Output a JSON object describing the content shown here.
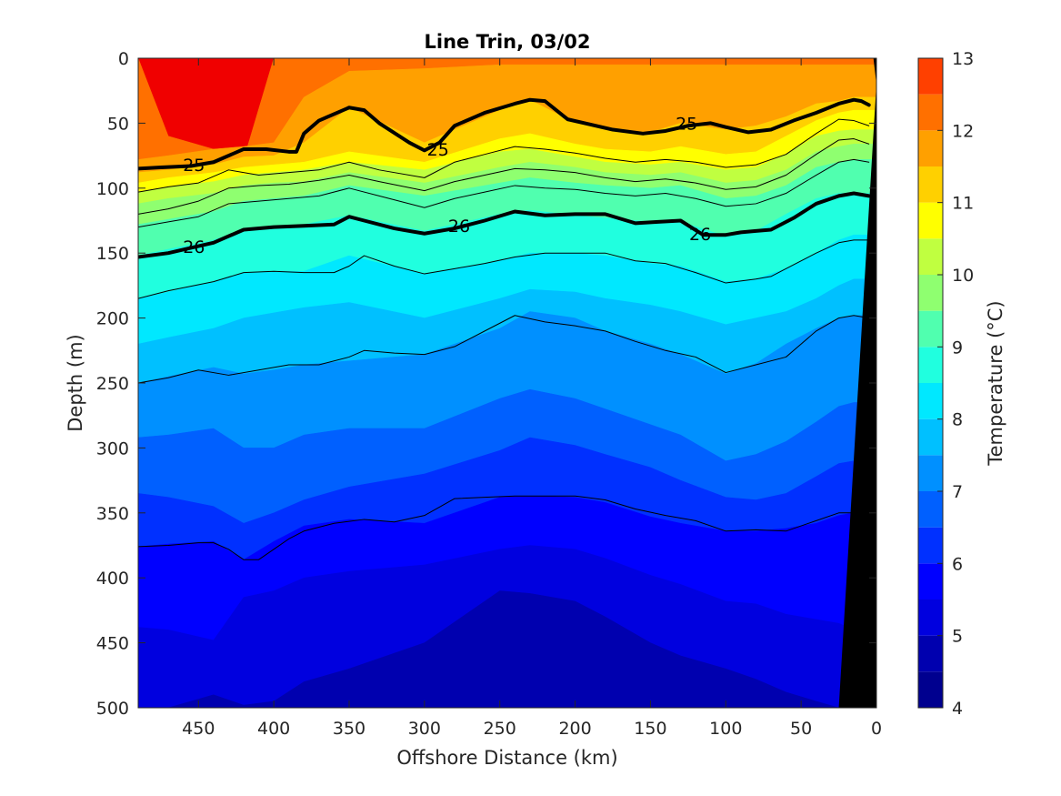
{
  "chart_data": {
    "type": "contour",
    "title": "Line Trin, 03/02",
    "xlabel": "Offshore Distance (km)",
    "ylabel": "Depth (m)",
    "colorbar_label": "Temperature (°C)",
    "xlim": [
      490,
      0
    ],
    "ylim": [
      0,
      500
    ],
    "x_reversed": true,
    "y_reversed": true,
    "x_ticks": [
      "450",
      "400",
      "350",
      "300",
      "250",
      "200",
      "150",
      "100",
      "50",
      "0"
    ],
    "y_ticks": [
      "0",
      "50",
      "100",
      "150",
      "200",
      "250",
      "300",
      "350",
      "400",
      "450",
      "500"
    ],
    "colorbar_ticks": [
      "4",
      "5",
      "6",
      "7",
      "8",
      "9",
      "10",
      "11",
      "12",
      "13"
    ],
    "colorbar_range": [
      4,
      13
    ],
    "temperature_levels": [
      {
        "value": 4.0,
        "color": "#00008f"
      },
      {
        "value": 4.5,
        "color": "#0000af"
      },
      {
        "value": 5.0,
        "color": "#0000df"
      },
      {
        "value": 5.5,
        "color": "#0000ff"
      },
      {
        "value": 6.0,
        "color": "#0030ff"
      },
      {
        "value": 6.5,
        "color": "#0060ff"
      },
      {
        "value": 7.0,
        "color": "#0090ff"
      },
      {
        "value": 7.5,
        "color": "#00c0ff"
      },
      {
        "value": 8.0,
        "color": "#00e8ff"
      },
      {
        "value": 8.5,
        "color": "#20ffdf"
      },
      {
        "value": 9.0,
        "color": "#50ffaf"
      },
      {
        "value": 9.5,
        "color": "#8fff70"
      },
      {
        "value": 10.0,
        "color": "#c0ff40"
      },
      {
        "value": 10.5,
        "color": "#ffff00"
      },
      {
        "value": 11.0,
        "color": "#ffd000"
      },
      {
        "value": 11.5,
        "color": "#ffa000"
      },
      {
        "value": 12.0,
        "color": "#ff7000"
      },
      {
        "value": 12.5,
        "color": "#ff4000"
      },
      {
        "value": 13.0,
        "color": "#f00000"
      }
    ],
    "colorbar_colors": [
      "#00008f",
      "#0000af",
      "#0000df",
      "#0000ff",
      "#0030ff",
      "#0060ff",
      "#0090ff",
      "#00c0ff",
      "#00e8ff",
      "#20ffdf",
      "#50ffaf",
      "#8fff70",
      "#c0ff40",
      "#ffff00",
      "#ffd000",
      "#ffa000",
      "#ff7000",
      "#ff4000",
      "#f00000",
      "#b00000"
    ],
    "x_profile": [
      490,
      470,
      440,
      420,
      400,
      380,
      350,
      300,
      250,
      230,
      200,
      180,
      150,
      130,
      100,
      80,
      60,
      40,
      25,
      15
    ],
    "temperature_isotherms": [
      {
        "level": 12.0,
        "depth": [
          0,
          60,
          70,
          78,
          0,
          0,
          0,
          0,
          0,
          0,
          0,
          0,
          0,
          0,
          0,
          0,
          0,
          0,
          0,
          0
        ]
      },
      {
        "level": 11.5,
        "depth": [
          78,
          75,
          70,
          68,
          65,
          30,
          10,
          8,
          5,
          5,
          5,
          5,
          5,
          5,
          5,
          5,
          5,
          5,
          5,
          5
        ]
      },
      {
        "level": 11.0,
        "depth": [
          88,
          86,
          82,
          76,
          75,
          65,
          38,
          65,
          40,
          32,
          50,
          55,
          57,
          50,
          55,
          52,
          45,
          35,
          33,
          30
        ]
      },
      {
        "level": 10.5,
        "depth": [
          96,
          92,
          88,
          84,
          82,
          80,
          72,
          80,
          62,
          58,
          66,
          70,
          72,
          68,
          74,
          72,
          60,
          48,
          42,
          40
        ]
      },
      {
        "level": 10.0,
        "depth": [
          103,
          99,
          95,
          90,
          88,
          86,
          80,
          86,
          72,
          70,
          76,
          80,
          82,
          80,
          86,
          84,
          74,
          60,
          56,
          55
        ]
      },
      {
        "level": 9.5,
        "depth": [
          112,
          108,
          104,
          98,
          96,
          95,
          88,
          96,
          84,
          80,
          84,
          88,
          90,
          88,
          96,
          94,
          86,
          72,
          68,
          66
        ]
      },
      {
        "level": 9.0,
        "depth": [
          128,
          124,
          118,
          110,
          108,
          106,
          98,
          106,
          96,
          92,
          96,
          98,
          100,
          98,
          108,
          106,
          98,
          84,
          80,
          78
        ]
      },
      {
        "level": 8.5,
        "depth": [
          152,
          147,
          140,
          132,
          130,
          128,
          121,
          133,
          120,
          117,
          121,
          123,
          126,
          126,
          137,
          133,
          120,
          108,
          104,
          104
        ]
      },
      {
        "level": 8.0,
        "depth": [
          185,
          180,
          172,
          165,
          164,
          164,
          152,
          166,
          156,
          150,
          150,
          152,
          158,
          160,
          172,
          170,
          162,
          150,
          140,
          136
        ]
      },
      {
        "level": 7.5,
        "depth": [
          220,
          215,
          208,
          200,
          196,
          192,
          188,
          200,
          185,
          178,
          180,
          185,
          190,
          195,
          205,
          200,
          195,
          185,
          175,
          170
        ]
      },
      {
        "level": 7.0,
        "depth": [
          250,
          245,
          238,
          243,
          240,
          236,
          233,
          228,
          208,
          195,
          200,
          210,
          220,
          228,
          243,
          235,
          220,
          208,
          200,
          198
        ]
      },
      {
        "level": 6.5,
        "depth": [
          292,
          290,
          285,
          300,
          300,
          290,
          285,
          285,
          262,
          255,
          262,
          270,
          282,
          290,
          310,
          305,
          295,
          280,
          268,
          265
        ]
      },
      {
        "level": 6.0,
        "depth": [
          335,
          338,
          345,
          358,
          350,
          340,
          330,
          320,
          302,
          292,
          298,
          305,
          315,
          325,
          338,
          340,
          335,
          322,
          312,
          310
        ]
      },
      {
        "level": 5.5,
        "depth": [
          376,
          374,
          372,
          386,
          372,
          360,
          355,
          358,
          338,
          337,
          338,
          342,
          353,
          358,
          364,
          364,
          362,
          358,
          352,
          350
        ]
      },
      {
        "level": 5.0,
        "depth": [
          438,
          440,
          448,
          415,
          410,
          400,
          395,
          390,
          378,
          375,
          378,
          385,
          398,
          405,
          418,
          420,
          428,
          432,
          435,
          440
        ]
      },
      {
        "level": 4.5,
        "depth": [
          500,
          500,
          490,
          498,
          495,
          480,
          470,
          450,
          410,
          412,
          418,
          430,
          450,
          460,
          470,
          478,
          488,
          495,
          500,
          500
        ]
      }
    ],
    "density_contours": [
      {
        "sigma": "25",
        "labeled": true,
        "x": [
          490,
          475,
          455,
          440,
          420,
          405,
          390,
          385,
          380,
          370,
          350,
          340,
          330,
          310,
          300,
          290,
          280,
          260,
          240,
          230,
          220,
          205,
          190,
          175,
          155,
          140,
          125,
          110,
          100,
          85,
          70,
          55,
          40,
          25,
          15,
          10,
          5
        ],
        "y": [
          85,
          84,
          83,
          80,
          70,
          70,
          72,
          72,
          58,
          48,
          38,
          40,
          50,
          65,
          71,
          65,
          52,
          42,
          35,
          32,
          33,
          47,
          51,
          55,
          58,
          56,
          52,
          50,
          53,
          57,
          55,
          48,
          42,
          35,
          32,
          33,
          36
        ]
      },
      {
        "sigma": "26",
        "labeled": true,
        "x": [
          490,
          470,
          455,
          440,
          420,
          400,
          380,
          360,
          350,
          340,
          320,
          300,
          280,
          260,
          240,
          220,
          200,
          180,
          160,
          145,
          130,
          115,
          100,
          90,
          80,
          70,
          55,
          40,
          25,
          15,
          5
        ],
        "y": [
          153,
          150,
          146,
          142,
          132,
          130,
          129,
          128,
          122,
          125,
          131,
          135,
          131,
          125,
          118,
          121,
          120,
          120,
          127,
          126,
          125,
          136,
          136,
          134,
          133,
          132,
          123,
          112,
          106,
          104,
          106
        ]
      },
      {
        "sigma": "25.25",
        "labeled": false,
        "x": [
          490,
          470,
          450,
          430,
          410,
          390,
          370,
          350,
          330,
          300,
          280,
          260,
          240,
          220,
          200,
          180,
          160,
          140,
          120,
          100,
          80,
          60,
          40,
          25,
          15,
          5
        ],
        "y": [
          103,
          99,
          96,
          86,
          90,
          88,
          86,
          80,
          86,
          92,
          80,
          74,
          68,
          70,
          73,
          77,
          80,
          78,
          80,
          84,
          82,
          74,
          58,
          47,
          48,
          52
        ]
      },
      {
        "sigma": "25.5",
        "labeled": false,
        "x": [
          490,
          470,
          450,
          430,
          410,
          390,
          370,
          350,
          330,
          300,
          280,
          260,
          240,
          220,
          200,
          180,
          160,
          140,
          120,
          100,
          80,
          60,
          40,
          25,
          15,
          5
        ],
        "y": [
          120,
          116,
          110,
          100,
          98,
          97,
          94,
          90,
          95,
          102,
          95,
          90,
          85,
          86,
          88,
          92,
          95,
          93,
          96,
          101,
          99,
          90,
          74,
          63,
          62,
          66
        ]
      },
      {
        "sigma": "25.75",
        "labeled": false,
        "x": [
          490,
          470,
          450,
          430,
          410,
          390,
          370,
          350,
          330,
          300,
          280,
          260,
          240,
          220,
          200,
          180,
          160,
          140,
          120,
          100,
          80,
          60,
          40,
          25,
          15,
          5
        ],
        "y": [
          130,
          126,
          122,
          112,
          110,
          108,
          106,
          100,
          106,
          115,
          108,
          103,
          98,
          100,
          101,
          104,
          106,
          104,
          108,
          114,
          112,
          104,
          90,
          80,
          78,
          80
        ]
      },
      {
        "sigma": "26.25",
        "labeled": false,
        "x": [
          490,
          470,
          440,
          420,
          400,
          380,
          360,
          350,
          340,
          320,
          300,
          280,
          260,
          240,
          220,
          200,
          180,
          160,
          140,
          120,
          100,
          80,
          70,
          60,
          40,
          25,
          15,
          5
        ],
        "y": [
          185,
          179,
          172,
          165,
          164,
          165,
          165,
          160,
          152,
          160,
          166,
          162,
          158,
          153,
          150,
          150,
          150,
          156,
          158,
          165,
          173,
          170,
          168,
          162,
          150,
          142,
          140,
          140
        ]
      },
      {
        "sigma": "26.5",
        "labeled": false,
        "x": [
          490,
          470,
          450,
          430,
          410,
          390,
          370,
          350,
          340,
          320,
          300,
          280,
          260,
          240,
          220,
          200,
          180,
          160,
          140,
          120,
          100,
          80,
          60,
          40,
          25,
          15,
          5
        ],
        "y": [
          250,
          246,
          240,
          244,
          240,
          236,
          236,
          230,
          225,
          227,
          228,
          222,
          210,
          198,
          203,
          206,
          210,
          218,
          225,
          230,
          242,
          236,
          230,
          210,
          200,
          198,
          200
        ]
      },
      {
        "sigma": "26.75",
        "labeled": false,
        "x": [
          490,
          470,
          450,
          440,
          430,
          420,
          410,
          400,
          390,
          380,
          360,
          340,
          320,
          300,
          280,
          260,
          240,
          220,
          200,
          180,
          160,
          140,
          120,
          100,
          80,
          60,
          40,
          25,
          15,
          5
        ],
        "y": [
          376,
          375,
          373,
          373,
          378,
          386,
          386,
          378,
          370,
          364,
          358,
          355,
          357,
          352,
          339,
          338,
          337,
          337,
          337,
          340,
          347,
          352,
          356,
          364,
          363,
          364,
          356,
          350,
          350,
          352
        ]
      }
    ],
    "contour_labels": [
      {
        "text": "25",
        "x": 453,
        "y": 82
      },
      {
        "text": "25",
        "x": 291,
        "y": 70
      },
      {
        "text": "25",
        "x": 126,
        "y": 50
      },
      {
        "text": "26",
        "x": 453,
        "y": 145
      },
      {
        "text": "26",
        "x": 277,
        "y": 129
      },
      {
        "text": "26",
        "x": 117,
        "y": 135
      }
    ],
    "land": {
      "x_top": 2,
      "x_bottom": 25
    }
  }
}
